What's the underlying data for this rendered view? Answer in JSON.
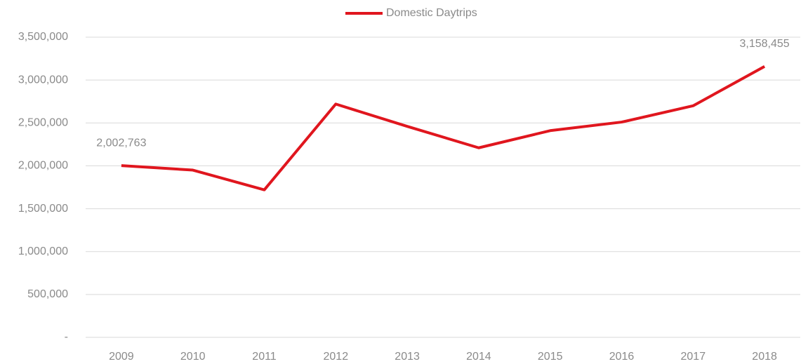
{
  "chart_data": {
    "type": "line",
    "categories": [
      "2009",
      "2010",
      "2011",
      "2012",
      "2013",
      "2014",
      "2015",
      "2016",
      "2017",
      "2018"
    ],
    "series": [
      {
        "name": "Domestic Daytrips",
        "color": "#e0161e",
        "values": [
          2002763,
          1950000,
          1720000,
          2720000,
          2460000,
          2210000,
          2410000,
          2510000,
          2700000,
          3158455
        ],
        "value_labels": [
          "2,002,763",
          null,
          null,
          null,
          null,
          null,
          null,
          null,
          null,
          "3,158,455"
        ]
      }
    ],
    "ylim": [
      0,
      3500000
    ],
    "yticks": [
      {
        "value": 0,
        "label": "-"
      },
      {
        "value": 500000,
        "label": "500,000"
      },
      {
        "value": 1000000,
        "label": "1,000,000"
      },
      {
        "value": 1500000,
        "label": "1,500,000"
      },
      {
        "value": 2000000,
        "label": "2,000,000"
      },
      {
        "value": 2500000,
        "label": "2,500,000"
      },
      {
        "value": 3000000,
        "label": "3,000,000"
      },
      {
        "value": 3500000,
        "label": "3,500,000"
      }
    ],
    "grid": true,
    "legend": "top"
  }
}
